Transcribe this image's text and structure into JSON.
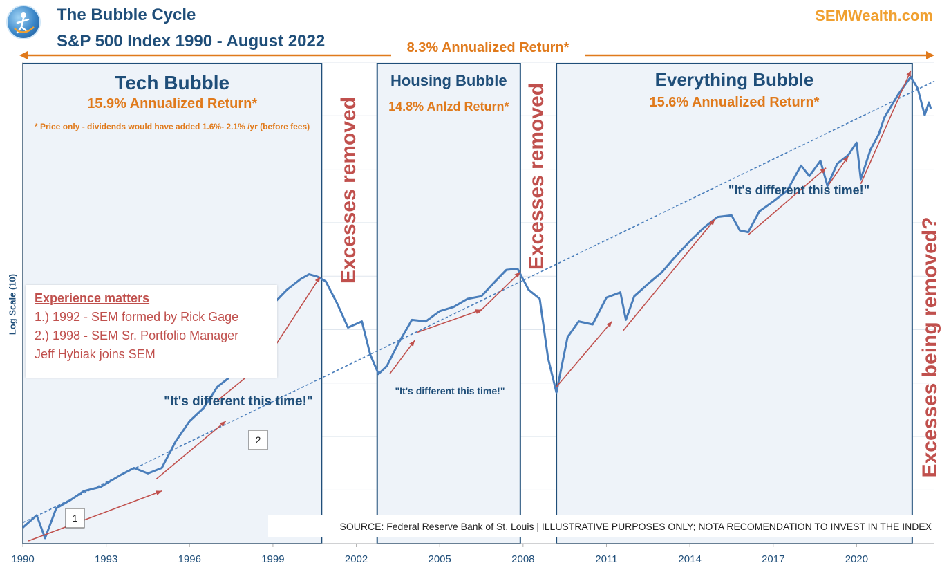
{
  "header": {
    "title_line1": "The Bubble Cycle",
    "title_line2": "S&P 500 Index 1990 - August 2022",
    "brand": "SEMWealth.com",
    "overall_return": "8.3% Annualized Return*"
  },
  "notes": {
    "y_axis_label": "Log Scale (10)",
    "footnote": "* Price only - dividends would have added 1.6%- 2.1% /yr (before fees)",
    "source": "SOURCE: Federal Reserve Bank of St. Louis | ILLUSTRATIVE PURPOSES ONLY; NOTA RECOMENDATION TO INVEST IN THE INDEX"
  },
  "experience": {
    "heading": "Experience matters",
    "lines": [
      "1.) 1992 - SEM formed by Rick Gage",
      "2.) 1998 - SEM Sr. Portfolio Manager",
      "Jeff Hybiak joins SEM"
    ]
  },
  "colors": {
    "title": "#1f4e79",
    "brand": "#f0a030",
    "orange": "#e07a1c",
    "red": "#c0504d",
    "line": "#4a7ebb",
    "box_fill": "#eef3f9",
    "grid": "#dfe6ee"
  },
  "chart_data": {
    "type": "line",
    "title": "The Bubble Cycle — S&P 500 Index 1990 - August 2022",
    "xlabel": "",
    "ylabel": "Log Scale (10)",
    "scale": "log10",
    "xlim": [
      1990,
      2022.8
    ],
    "ylim": [
      300,
      5200
    ],
    "grid": true,
    "x_ticks": [
      "1990",
      "1993",
      "1996",
      "1999",
      "2002",
      "2005",
      "2008",
      "2011",
      "2014",
      "2017",
      "2020"
    ],
    "series": [
      {
        "name": "S&P 500 Index",
        "points": [
          [
            1990.0,
            330
          ],
          [
            1990.5,
            355
          ],
          [
            1990.8,
            310
          ],
          [
            1991.2,
            370
          ],
          [
            1991.7,
            388
          ],
          [
            1992.2,
            410
          ],
          [
            1992.8,
            420
          ],
          [
            1993.5,
            450
          ],
          [
            1994.0,
            470
          ],
          [
            1994.5,
            455
          ],
          [
            1995.0,
            470
          ],
          [
            1995.5,
            550
          ],
          [
            1996.0,
            620
          ],
          [
            1996.5,
            670
          ],
          [
            1997.0,
            760
          ],
          [
            1997.4,
            800
          ],
          [
            1997.8,
            950
          ],
          [
            1998.3,
            1100
          ],
          [
            1998.6,
            1140
          ],
          [
            1998.7,
            970
          ],
          [
            1999.0,
            1240
          ],
          [
            1999.5,
            1350
          ],
          [
            2000.0,
            1440
          ],
          [
            2000.3,
            1480
          ],
          [
            2000.6,
            1460
          ],
          [
            2000.9,
            1420
          ],
          [
            2001.3,
            1250
          ],
          [
            2001.7,
            1080
          ],
          [
            2002.2,
            1120
          ],
          [
            2002.5,
            920
          ],
          [
            2002.8,
            820
          ],
          [
            2003.1,
            860
          ],
          [
            2003.5,
            980
          ],
          [
            2004.0,
            1130
          ],
          [
            2004.5,
            1120
          ],
          [
            2005.0,
            1190
          ],
          [
            2005.5,
            1220
          ],
          [
            2006.0,
            1280
          ],
          [
            2006.5,
            1300
          ],
          [
            2007.0,
            1420
          ],
          [
            2007.4,
            1520
          ],
          [
            2007.8,
            1530
          ],
          [
            2008.2,
            1350
          ],
          [
            2008.6,
            1280
          ],
          [
            2008.9,
            900
          ],
          [
            2009.2,
            735
          ],
          [
            2009.6,
            1020
          ],
          [
            2010.0,
            1120
          ],
          [
            2010.5,
            1100
          ],
          [
            2011.0,
            1290
          ],
          [
            2011.5,
            1330
          ],
          [
            2011.7,
            1130
          ],
          [
            2012.0,
            1300
          ],
          [
            2012.5,
            1400
          ],
          [
            2013.0,
            1500
          ],
          [
            2013.5,
            1650
          ],
          [
            2014.0,
            1800
          ],
          [
            2014.5,
            1950
          ],
          [
            2015.0,
            2080
          ],
          [
            2015.5,
            2100
          ],
          [
            2015.8,
            1920
          ],
          [
            2016.1,
            1900
          ],
          [
            2016.5,
            2150
          ],
          [
            2017.0,
            2280
          ],
          [
            2017.5,
            2430
          ],
          [
            2018.0,
            2820
          ],
          [
            2018.3,
            2650
          ],
          [
            2018.7,
            2900
          ],
          [
            2018.95,
            2500
          ],
          [
            2019.3,
            2850
          ],
          [
            2019.7,
            3000
          ],
          [
            2020.0,
            3230
          ],
          [
            2020.15,
            2600
          ],
          [
            2020.5,
            3100
          ],
          [
            2020.8,
            3400
          ],
          [
            2021.0,
            3750
          ],
          [
            2021.5,
            4300
          ],
          [
            2021.95,
            4770
          ],
          [
            2022.2,
            4450
          ],
          [
            2022.45,
            3800
          ],
          [
            2022.6,
            4100
          ],
          [
            2022.67,
            3950
          ]
        ]
      },
      {
        "name": "Trend (8.3% annualized)",
        "style": "dashed",
        "start": [
          1990,
          340
        ],
        "annual_growth": 0.083
      }
    ],
    "bubble_periods": [
      {
        "name": "Tech Bubble",
        "start": 1990,
        "end": 2000.75,
        "return_label": "15.9% Annualized Return*"
      },
      {
        "name": "Housing Bubble",
        "start": 2002.75,
        "end": 2007.9,
        "return_label": "14.8% Anlzd Return*"
      },
      {
        "name": "Everything Bubble",
        "start": 2009.2,
        "end": 2022.0,
        "return_label": "15.6% Annualized Return*"
      }
    ],
    "excess_labels": [
      {
        "text": "Excesses removed",
        "x": 2001.75
      },
      {
        "text": "Excesses removed",
        "x": 2008.5
      },
      {
        "text": "Excesses being removed?",
        "x": 2022.4
      }
    ],
    "quotes": [
      {
        "text": "\"It's different this time!\"",
        "period": "Tech Bubble"
      },
      {
        "text": "\"It's different this time!\"",
        "period": "Housing Bubble"
      },
      {
        "text": "\"It's different this time!\"",
        "period": "Everything Bubble"
      }
    ],
    "markers": [
      {
        "label": "1",
        "x": 1992.0
      },
      {
        "label": "2",
        "x": 1998.5
      }
    ],
    "trend_arrows": [
      {
        "from": [
          1990.2,
          305
        ],
        "to": [
          1995.0,
          410
        ]
      },
      {
        "from": [
          1994.8,
          440
        ],
        "to": [
          1997.3,
          620
        ]
      },
      {
        "from": [
          1997.0,
          700
        ],
        "to": [
          1998.7,
          880
        ]
      },
      {
        "from": [
          1998.7,
          880
        ],
        "to": [
          2000.7,
          1460
        ]
      },
      {
        "from": [
          2003.2,
          820
        ],
        "to": [
          2004.1,
          1000
        ]
      },
      {
        "from": [
          2004.2,
          1050
        ],
        "to": [
          2006.5,
          1200
        ]
      },
      {
        "from": [
          2006.4,
          1180
        ],
        "to": [
          2007.9,
          1500
        ]
      },
      {
        "from": [
          2009.2,
          760
        ],
        "to": [
          2011.2,
          1120
        ]
      },
      {
        "from": [
          2011.6,
          1060
        ],
        "to": [
          2014.9,
          2050
        ]
      },
      {
        "from": [
          2016.1,
          1870
        ],
        "to": [
          2018.9,
          2780
        ]
      },
      {
        "from": [
          2019.0,
          2520
        ],
        "to": [
          2019.7,
          2980
        ]
      },
      {
        "from": [
          2020.15,
          2530
        ],
        "to": [
          2021.95,
          4950
        ]
      }
    ]
  }
}
